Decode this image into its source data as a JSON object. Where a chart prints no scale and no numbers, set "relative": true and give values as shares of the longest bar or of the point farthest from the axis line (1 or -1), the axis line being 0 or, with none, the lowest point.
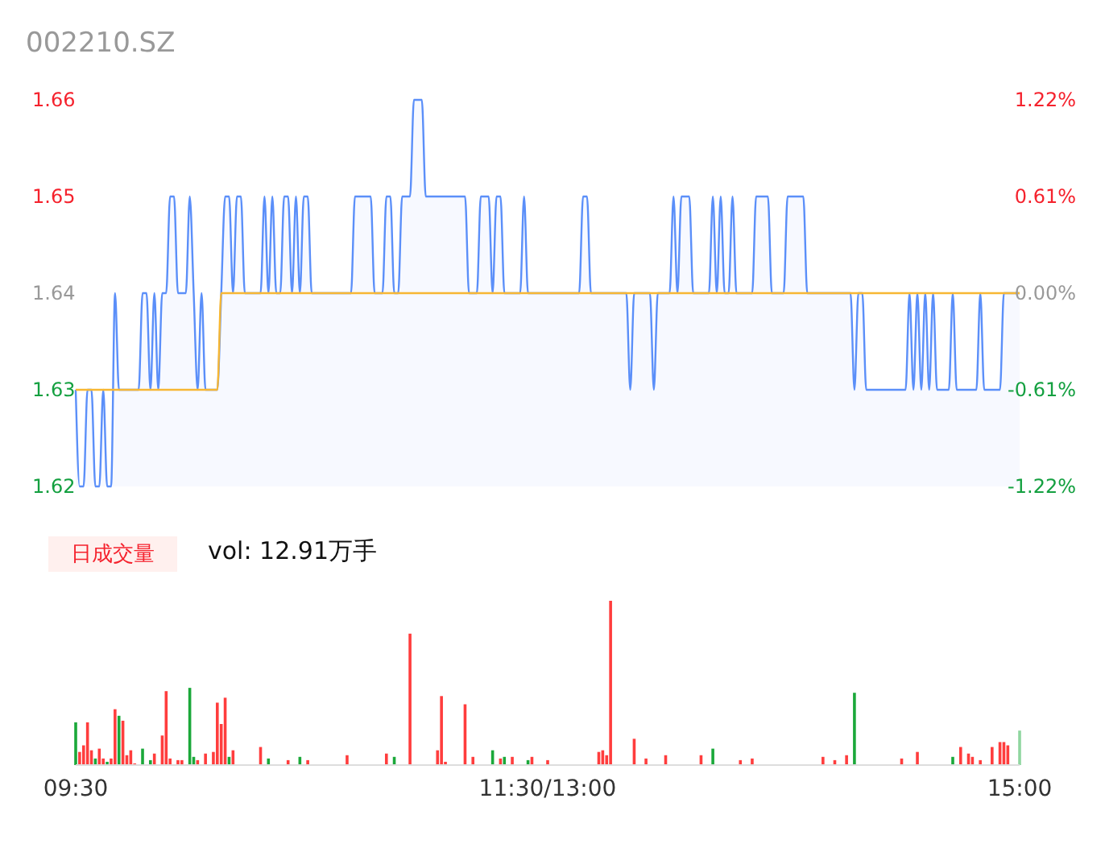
{
  "chart_data": [
    {
      "type": "area",
      "title": "002210.SZ",
      "tick_labels": "y",
      "ylim": [
        1.62,
        1.66
      ],
      "yticks": [
        1.62,
        1.63,
        1.64,
        1.65,
        1.66
      ],
      "y2lim": [
        -1.22,
        1.22
      ],
      "y2ticks": [
        {
          "value": -1.22,
          "label": "-1.22%"
        },
        {
          "value": -0.61,
          "label": "-0.61%"
        },
        {
          "value": 0,
          "label": "0.00%"
        },
        {
          "value": 0.61,
          "label": "0.61%"
        },
        {
          "value": 1.22,
          "label": "1.22%"
        }
      ],
      "series": [
        {
          "color": "#5b8ff9",
          "values": [
            1.63,
            1.62,
            1.62,
            1.63,
            1.63,
            1.62,
            1.62,
            1.63,
            1.62,
            1.62,
            1.64,
            1.63,
            1.63,
            1.63,
            1.63,
            1.63,
            1.63,
            1.64,
            1.64,
            1.63,
            1.64,
            1.63,
            1.64,
            1.64,
            1.65,
            1.65,
            1.64,
            1.64,
            1.64,
            1.65,
            1.64,
            1.63,
            1.64,
            1.63,
            1.63,
            1.63,
            1.63,
            1.64,
            1.65,
            1.65,
            1.64,
            1.65,
            1.65,
            1.64,
            1.64,
            1.64,
            1.64,
            1.64,
            1.65,
            1.64,
            1.65,
            1.64,
            1.64,
            1.65,
            1.65,
            1.64,
            1.65,
            1.64,
            1.65,
            1.65,
            1.64,
            1.64,
            1.64,
            1.64,
            1.64,
            1.64,
            1.64,
            1.64,
            1.64,
            1.64,
            1.64,
            1.65,
            1.65,
            1.65,
            1.65,
            1.65,
            1.64,
            1.64,
            1.64,
            1.65,
            1.65,
            1.64,
            1.64,
            1.65,
            1.65,
            1.65,
            1.66,
            1.66,
            1.66,
            1.65,
            1.65,
            1.65,
            1.65,
            1.65,
            1.65,
            1.65,
            1.65,
            1.65,
            1.65,
            1.65,
            1.64,
            1.64,
            1.64,
            1.65,
            1.65,
            1.65,
            1.64,
            1.65,
            1.65,
            1.64,
            1.64,
            1.64,
            1.64,
            1.64,
            1.65,
            1.64,
            1.64,
            1.64,
            1.64,
            1.64,
            1.64,
            1.64,
            1.64,
            1.64,
            1.64,
            1.64,
            1.64,
            1.64,
            1.64,
            1.65,
            1.65,
            1.64,
            1.64,
            1.64,
            1.64,
            1.64,
            1.64,
            1.64,
            1.64,
            1.64,
            1.64,
            1.63,
            1.64,
            1.64,
            1.64,
            1.64,
            1.64,
            1.63,
            1.64,
            1.64,
            1.64,
            1.64,
            1.65,
            1.64,
            1.65,
            1.65,
            1.65,
            1.64,
            1.64,
            1.64,
            1.64,
            1.64,
            1.65,
            1.64,
            1.65,
            1.64,
            1.64,
            1.65,
            1.64,
            1.64,
            1.64,
            1.64,
            1.64,
            1.65,
            1.65,
            1.65,
            1.65,
            1.64,
            1.64,
            1.64,
            1.64,
            1.65,
            1.65,
            1.65,
            1.65,
            1.65,
            1.64,
            1.64,
            1.64,
            1.64,
            1.64,
            1.64,
            1.64,
            1.64,
            1.64,
            1.64,
            1.64,
            1.64,
            1.63,
            1.64,
            1.64,
            1.63,
            1.63,
            1.63,
            1.63,
            1.63,
            1.63,
            1.63,
            1.63,
            1.63,
            1.63,
            1.63,
            1.64,
            1.63,
            1.64,
            1.63,
            1.64,
            1.63,
            1.64,
            1.63,
            1.63,
            1.63,
            1.63,
            1.64,
            1.63,
            1.63,
            1.63,
            1.63,
            1.63,
            1.63,
            1.64,
            1.63,
            1.63,
            1.63,
            1.63,
            1.63,
            1.64,
            1.64,
            1.64,
            1.64,
            1.64
          ]
        },
        {
          "type": "line",
          "color": "#f7b733",
          "values": [
            1.63,
            1.63,
            1.63,
            1.63,
            1.63,
            1.63,
            1.63,
            1.63,
            1.63,
            1.63,
            1.63,
            1.63,
            1.63,
            1.63,
            1.63,
            1.63,
            1.63,
            1.63,
            1.63,
            1.63,
            1.63,
            1.63,
            1.63,
            1.63,
            1.63,
            1.63,
            1.63,
            1.63,
            1.63,
            1.63,
            1.63,
            1.63,
            1.63,
            1.63,
            1.63,
            1.63,
            1.63,
            1.64,
            1.64,
            1.64,
            1.64,
            1.64,
            1.64,
            1.64,
            1.64,
            1.64,
            1.64,
            1.64,
            1.64,
            1.64,
            1.64,
            1.64,
            1.64,
            1.64,
            1.64,
            1.64,
            1.64,
            1.64,
            1.64,
            1.64,
            1.64,
            1.64,
            1.64,
            1.64,
            1.64,
            1.64,
            1.64,
            1.64,
            1.64,
            1.64,
            1.64,
            1.64,
            1.64,
            1.64,
            1.64,
            1.64,
            1.64,
            1.64,
            1.64,
            1.64,
            1.64,
            1.64,
            1.64,
            1.64,
            1.64,
            1.64,
            1.64,
            1.64,
            1.64,
            1.64,
            1.64,
            1.64,
            1.64,
            1.64,
            1.64,
            1.64,
            1.64,
            1.64,
            1.64,
            1.64,
            1.64,
            1.64,
            1.64,
            1.64,
            1.64,
            1.64,
            1.64,
            1.64,
            1.64,
            1.64,
            1.64,
            1.64,
            1.64,
            1.64,
            1.64,
            1.64,
            1.64,
            1.64,
            1.64,
            1.64,
            1.64,
            1.64,
            1.64,
            1.64,
            1.64,
            1.64,
            1.64,
            1.64,
            1.64,
            1.64,
            1.64,
            1.64,
            1.64,
            1.64,
            1.64,
            1.64,
            1.64,
            1.64,
            1.64,
            1.64,
            1.64,
            1.64,
            1.64,
            1.64,
            1.64,
            1.64,
            1.64,
            1.64,
            1.64,
            1.64,
            1.64,
            1.64,
            1.64,
            1.64,
            1.64,
            1.64,
            1.64,
            1.64,
            1.64,
            1.64,
            1.64,
            1.64,
            1.64,
            1.64,
            1.64,
            1.64,
            1.64,
            1.64,
            1.64,
            1.64,
            1.64,
            1.64,
            1.64,
            1.64,
            1.64,
            1.64,
            1.64,
            1.64,
            1.64,
            1.64,
            1.64,
            1.64,
            1.64,
            1.64,
            1.64,
            1.64,
            1.64,
            1.64,
            1.64,
            1.64,
            1.64,
            1.64,
            1.64,
            1.64,
            1.64,
            1.64,
            1.64,
            1.64,
            1.64,
            1.64,
            1.64,
            1.64,
            1.64,
            1.64,
            1.64,
            1.64,
            1.64,
            1.64,
            1.64,
            1.64,
            1.64,
            1.64,
            1.64,
            1.64,
            1.64,
            1.64,
            1.64,
            1.64,
            1.64,
            1.64,
            1.64,
            1.64,
            1.64,
            1.64,
            1.64,
            1.64,
            1.64,
            1.64,
            1.64,
            1.64,
            1.64,
            1.64,
            1.64,
            1.64,
            1.64,
            1.64,
            1.64,
            1.64,
            1.64,
            1.64,
            1.64
          ]
        }
      ]
    },
    {
      "type": "bar",
      "title": "日成交量",
      "subtitle": "vol: 12.91万手",
      "relative": true,
      "categories": [
        "09:30",
        null,
        null,
        null,
        null,
        null,
        null,
        null,
        null,
        null,
        null,
        null,
        null,
        null,
        null,
        null,
        null,
        null,
        null,
        null,
        null,
        null,
        null,
        null,
        null,
        null,
        null,
        null,
        null,
        null,
        null,
        null,
        null,
        null,
        null,
        null,
        null,
        null,
        null,
        null,
        null,
        null,
        null,
        null,
        null,
        null,
        null,
        null,
        null,
        null,
        null,
        null,
        null,
        null,
        null,
        null,
        null,
        null,
        null,
        null,
        null,
        null,
        null,
        null,
        null,
        null,
        null,
        null,
        null,
        null,
        null,
        null,
        null,
        null,
        null,
        null,
        null,
        null,
        null,
        null,
        null,
        null,
        null,
        null,
        null,
        null,
        null,
        null,
        null,
        null,
        null,
        null,
        null,
        null,
        null,
        null,
        null,
        null,
        null,
        null,
        null,
        null,
        null,
        null,
        null,
        null,
        null,
        null,
        null,
        null,
        null,
        null,
        null,
        null,
        null,
        null,
        null,
        null,
        null,
        null,
        "11:30/13:00",
        null,
        null,
        null,
        null,
        null,
        null,
        null,
        null,
        null,
        null,
        null,
        null,
        null,
        null,
        null,
        null,
        null,
        null,
        null,
        null,
        null,
        null,
        null,
        null,
        null,
        null,
        null,
        null,
        null,
        null,
        null,
        null,
        null,
        null,
        null,
        null,
        null,
        null,
        null,
        null,
        null,
        null,
        null,
        null,
        null,
        null,
        null,
        null,
        null,
        null,
        null,
        null,
        null,
        null,
        null,
        null,
        null,
        null,
        null,
        null,
        null,
        null,
        null,
        null,
        null,
        null,
        null,
        null,
        null,
        null,
        null,
        null,
        null,
        null,
        null,
        null,
        null,
        null,
        null,
        null,
        null,
        null,
        null,
        null,
        null,
        null,
        null,
        null,
        null,
        null,
        null,
        null,
        null,
        null,
        null,
        null,
        null,
        null,
        null,
        null,
        null,
        null,
        null,
        null,
        null,
        null,
        null,
        null,
        null,
        null,
        null,
        null,
        null,
        null,
        null,
        null,
        null,
        null,
        null,
        "15:00"
      ],
      "values": [
        0.26,
        0.08,
        0.12,
        0.26,
        0.09,
        0.04,
        0.1,
        0.04,
        0.02,
        0.04,
        0.34,
        0.3,
        0.27,
        0.06,
        0.09,
        0.01,
        null,
        0.1,
        null,
        0.03,
        0.07,
        null,
        0.18,
        0.45,
        0.04,
        null,
        0.03,
        0.03,
        null,
        0.47,
        0.05,
        0.03,
        null,
        0.07,
        null,
        0.08,
        0.38,
        0.25,
        0.41,
        0.05,
        0.09,
        null,
        null,
        null,
        null,
        null,
        null,
        0.11,
        null,
        0.04,
        null,
        null,
        null,
        null,
        0.03,
        null,
        null,
        0.05,
        null,
        0.03,
        null,
        null,
        null,
        null,
        null,
        null,
        null,
        null,
        null,
        0.06,
        null,
        null,
        null,
        null,
        null,
        null,
        null,
        null,
        null,
        0.07,
        null,
        0.05,
        null,
        null,
        null,
        0.8,
        null,
        null,
        null,
        null,
        null,
        null,
        0.09,
        0.42,
        0.02,
        null,
        null,
        null,
        null,
        0.37,
        null,
        0.05,
        null,
        null,
        null,
        null,
        0.09,
        null,
        0.04,
        0.05,
        null,
        0.05,
        null,
        null,
        null,
        0.03,
        0.05,
        null,
        null,
        null,
        0.03,
        null,
        null,
        null,
        null,
        null,
        null,
        null,
        null,
        null,
        null,
        null,
        null,
        0.08,
        0.09,
        0.06,
        1,
        null,
        null,
        null,
        null,
        null,
        0.16,
        null,
        null,
        0.04,
        null,
        null,
        null,
        null,
        0.06,
        null,
        null,
        null,
        null,
        null,
        null,
        null,
        null,
        0.06,
        null,
        null,
        0.1,
        null,
        null,
        null,
        null,
        null,
        null,
        0.03,
        null,
        null,
        0.04,
        null,
        null,
        null,
        null,
        null,
        null,
        null,
        null,
        null,
        null,
        null,
        null,
        null,
        null,
        null,
        null,
        null,
        0.05,
        null,
        null,
        0.03,
        null,
        null,
        0.06,
        null,
        0.44,
        null,
        null,
        null,
        null,
        null,
        null,
        null,
        null,
        null,
        null,
        null,
        0.04,
        null,
        null,
        null,
        0.08,
        null,
        null,
        null,
        null,
        null,
        null,
        null,
        null,
        0.05,
        null,
        0.11,
        null,
        0.07,
        0.05,
        null,
        0.03,
        null,
        null,
        0.11,
        null,
        0.14,
        0.14,
        0.12,
        null,
        null,
        0.21
      ],
      "colors": [
        "#1ba83a",
        "#ff3d3d",
        "#ff3d3d",
        "#ff3d3d",
        "#ff3d3d",
        "#1ba83a",
        "#ff3d3d",
        "#ff3d3d",
        "#1ba83a",
        "#ff3d3d",
        "#ff3d3d",
        "#1ba83a",
        "#ff3d3d",
        "#ff3d3d",
        "#ff3d3d",
        "#ff3d3d",
        null,
        "#1ba83a",
        null,
        "#1ba83a",
        "#ff3d3d",
        null,
        "#ff3d3d",
        "#ff3d3d",
        "#ff3d3d",
        null,
        "#ff3d3d",
        "#ff3d3d",
        null,
        "#1ba83a",
        "#1ba83a",
        "#ff3d3d",
        null,
        "#ff3d3d",
        null,
        "#ff3d3d",
        "#ff3d3d",
        "#ff3d3d",
        "#ff3d3d",
        "#1ba83a",
        "#ff3d3d",
        null,
        null,
        null,
        null,
        null,
        null,
        "#ff3d3d",
        null,
        "#1ba83a",
        null,
        null,
        null,
        null,
        "#ff3d3d",
        null,
        null,
        "#1ba83a",
        null,
        "#ff3d3d",
        null,
        null,
        null,
        null,
        null,
        null,
        null,
        null,
        null,
        "#ff3d3d",
        null,
        null,
        null,
        null,
        null,
        null,
        null,
        null,
        null,
        "#ff3d3d",
        null,
        "#1ba83a",
        null,
        null,
        null,
        "#ff3d3d",
        null,
        null,
        null,
        null,
        null,
        null,
        "#ff3d3d",
        "#ff3d3d",
        "#ff3d3d",
        null,
        null,
        null,
        null,
        "#ff3d3d",
        null,
        "#ff3d3d",
        null,
        null,
        null,
        null,
        "#1ba83a",
        null,
        "#ff3d3d",
        "#1ba83a",
        null,
        "#ff3d3d",
        null,
        null,
        null,
        "#1ba83a",
        "#ff3d3d",
        null,
        null,
        null,
        "#ff3d3d",
        null,
        null,
        null,
        null,
        null,
        null,
        null,
        null,
        null,
        null,
        null,
        null,
        "#ff3d3d",
        "#ff3d3d",
        "#ff3d3d",
        "#ff3d3d",
        null,
        null,
        null,
        null,
        null,
        "#ff3d3d",
        null,
        null,
        "#ff3d3d",
        null,
        null,
        null,
        null,
        "#ff3d3d",
        null,
        null,
        null,
        null,
        null,
        null,
        null,
        null,
        "#ff3d3d",
        null,
        null,
        "#1ba83a",
        null,
        null,
        null,
        null,
        null,
        null,
        "#ff3d3d",
        null,
        null,
        "#ff3d3d",
        null,
        null,
        null,
        null,
        null,
        null,
        null,
        null,
        null,
        null,
        null,
        null,
        null,
        null,
        null,
        null,
        null,
        "#ff3d3d",
        null,
        null,
        "#ff3d3d",
        null,
        null,
        "#ff3d3d",
        null,
        "#1ba83a",
        null,
        null,
        null,
        null,
        null,
        null,
        null,
        null,
        null,
        null,
        null,
        "#ff3d3d",
        null,
        null,
        null,
        "#ff3d3d",
        null,
        null,
        null,
        null,
        null,
        null,
        null,
        null,
        "#1ba83a",
        null,
        "#ff3d3d",
        null,
        "#ff3d3d",
        "#ff3d3d",
        null,
        "#ff3d3d",
        null,
        null,
        "#ff3d3d",
        null,
        "#ff3d3d",
        "#ff3d3d",
        "#ff3d3d",
        null,
        null,
        "#8fd6a0"
      ]
    }
  ]
}
